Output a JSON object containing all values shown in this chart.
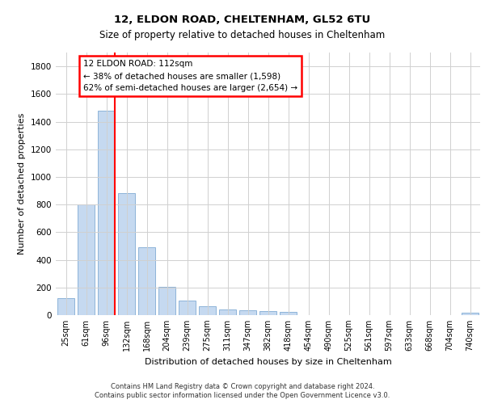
{
  "title1": "12, ELDON ROAD, CHELTENHAM, GL52 6TU",
  "title2": "Size of property relative to detached houses in Cheltenham",
  "xlabel": "Distribution of detached houses by size in Cheltenham",
  "ylabel": "Number of detached properties",
  "categories": [
    "25sqm",
    "61sqm",
    "96sqm",
    "132sqm",
    "168sqm",
    "204sqm",
    "239sqm",
    "275sqm",
    "311sqm",
    "347sqm",
    "382sqm",
    "418sqm",
    "454sqm",
    "490sqm",
    "525sqm",
    "561sqm",
    "597sqm",
    "633sqm",
    "668sqm",
    "704sqm",
    "740sqm"
  ],
  "values": [
    125,
    800,
    1480,
    880,
    490,
    205,
    105,
    65,
    40,
    35,
    30,
    25,
    0,
    0,
    0,
    0,
    0,
    0,
    0,
    0,
    20
  ],
  "bar_color": "#c5d9f0",
  "bar_edgecolor": "#8eb4d9",
  "grid_color": "#d0d0d0",
  "red_line_index": 2,
  "annotation_text": "12 ELDON ROAD: 112sqm\n← 38% of detached houses are smaller (1,598)\n62% of semi-detached houses are larger (2,654) →",
  "annotation_box_edgecolor": "red",
  "footer1": "Contains HM Land Registry data © Crown copyright and database right 2024.",
  "footer2": "Contains public sector information licensed under the Open Government Licence v3.0.",
  "ylim": [
    0,
    1900
  ],
  "yticks": [
    0,
    200,
    400,
    600,
    800,
    1000,
    1200,
    1400,
    1600,
    1800
  ],
  "bar_width": 0.85
}
